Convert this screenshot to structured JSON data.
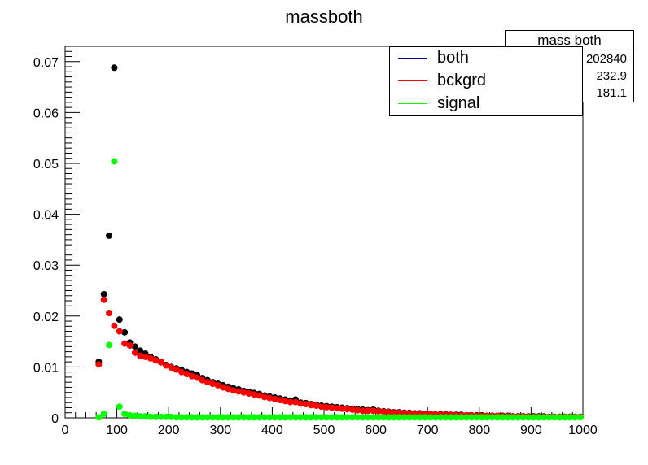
{
  "chart_data": {
    "type": "scatter",
    "title": "massboth",
    "xlabel": "",
    "ylabel": "",
    "xlim": [
      0,
      1000
    ],
    "ylim": [
      0,
      0.073
    ],
    "x_ticks": [
      "0",
      "100",
      "200",
      "300",
      "400",
      "500",
      "600",
      "700",
      "800",
      "900",
      "1000"
    ],
    "y_ticks": [
      "0",
      "0.01",
      "0.02",
      "0.03",
      "0.04",
      "0.05",
      "0.06",
      "0.07"
    ],
    "legend_position": "top-right",
    "series": [
      {
        "name": "both",
        "color": "#000000",
        "line_color": "#00008b",
        "points": [
          [
            65,
            0.011
          ],
          [
            75,
            0.0243
          ],
          [
            85,
            0.0358
          ],
          [
            95,
            0.0688
          ],
          [
            105,
            0.0193
          ],
          [
            115,
            0.0168
          ],
          [
            125,
            0.0148
          ],
          [
            135,
            0.014
          ],
          [
            145,
            0.0132
          ],
          [
            155,
            0.0126
          ],
          [
            165,
            0.012
          ],
          [
            175,
            0.0115
          ],
          [
            185,
            0.011
          ],
          [
            195,
            0.0104
          ],
          [
            205,
            0.01
          ],
          [
            215,
            0.0097
          ],
          [
            225,
            0.0094
          ],
          [
            235,
            0.009
          ],
          [
            245,
            0.0087
          ],
          [
            255,
            0.0084
          ],
          [
            265,
            0.0078
          ],
          [
            275,
            0.0074
          ],
          [
            285,
            0.007
          ],
          [
            295,
            0.0067
          ],
          [
            305,
            0.0064
          ],
          [
            315,
            0.0061
          ],
          [
            325,
            0.0058
          ],
          [
            335,
            0.0056
          ],
          [
            345,
            0.0053
          ],
          [
            355,
            0.0051
          ],
          [
            365,
            0.0049
          ],
          [
            375,
            0.0047
          ],
          [
            385,
            0.0044
          ],
          [
            395,
            0.0042
          ],
          [
            405,
            0.004
          ],
          [
            415,
            0.0038
          ],
          [
            425,
            0.0036
          ],
          [
            435,
            0.0034
          ],
          [
            445,
            0.0036
          ],
          [
            455,
            0.003
          ],
          [
            465,
            0.0029
          ],
          [
            475,
            0.0027
          ],
          [
            485,
            0.0026
          ],
          [
            495,
            0.0024
          ],
          [
            505,
            0.0023
          ],
          [
            515,
            0.0022
          ],
          [
            525,
            0.0021
          ],
          [
            535,
            0.002
          ],
          [
            545,
            0.0019
          ],
          [
            555,
            0.0018
          ],
          [
            565,
            0.0017
          ],
          [
            575,
            0.0016
          ],
          [
            585,
            0.0015
          ],
          [
            595,
            0.0016
          ],
          [
            605,
            0.0014
          ],
          [
            615,
            0.0013
          ],
          [
            625,
            0.0012
          ],
          [
            635,
            0.0011
          ],
          [
            645,
            0.0011
          ],
          [
            655,
            0.001
          ],
          [
            665,
            0.001
          ],
          [
            675,
            0.0009
          ],
          [
            685,
            0.0009
          ],
          [
            695,
            0.0008
          ],
          [
            705,
            0.0008
          ],
          [
            715,
            0.0007
          ],
          [
            725,
            0.0007
          ],
          [
            735,
            0.0007
          ],
          [
            745,
            0.0006
          ],
          [
            755,
            0.0006
          ],
          [
            765,
            0.0006
          ],
          [
            775,
            0.0005
          ],
          [
            785,
            0.0005
          ],
          [
            795,
            0.0005
          ],
          [
            805,
            0.0005
          ],
          [
            815,
            0.0004
          ],
          [
            825,
            0.0004
          ],
          [
            835,
            0.0004
          ],
          [
            845,
            0.0004
          ],
          [
            855,
            0.0004
          ],
          [
            865,
            0.0003
          ],
          [
            875,
            0.0003
          ],
          [
            885,
            0.0003
          ],
          [
            895,
            0.0003
          ],
          [
            905,
            0.0003
          ],
          [
            915,
            0.0003
          ],
          [
            925,
            0.0003
          ],
          [
            935,
            0.0002
          ],
          [
            945,
            0.0002
          ],
          [
            955,
            0.0002
          ],
          [
            965,
            0.0002
          ],
          [
            975,
            0.0002
          ],
          [
            985,
            0.0002
          ],
          [
            995,
            0.0002
          ]
        ]
      },
      {
        "name": "bckgrd",
        "color": "#ff0000",
        "line_color": "#ff0000",
        "points": [
          [
            65,
            0.0105
          ],
          [
            75,
            0.0232
          ],
          [
            85,
            0.0206
          ],
          [
            95,
            0.0181
          ],
          [
            105,
            0.017
          ],
          [
            115,
            0.0146
          ],
          [
            125,
            0.0142
          ],
          [
            135,
            0.0128
          ],
          [
            145,
            0.0122
          ],
          [
            155,
            0.012
          ],
          [
            165,
            0.0117
          ],
          [
            175,
            0.0113
          ],
          [
            185,
            0.0109
          ],
          [
            195,
            0.0103
          ],
          [
            205,
            0.0099
          ],
          [
            215,
            0.0095
          ],
          [
            225,
            0.009
          ],
          [
            235,
            0.0086
          ],
          [
            245,
            0.0082
          ],
          [
            255,
            0.0079
          ],
          [
            265,
            0.0074
          ],
          [
            275,
            0.007
          ],
          [
            285,
            0.0067
          ],
          [
            295,
            0.0064
          ],
          [
            305,
            0.006
          ],
          [
            315,
            0.0057
          ],
          [
            325,
            0.0054
          ],
          [
            335,
            0.0052
          ],
          [
            345,
            0.005
          ],
          [
            355,
            0.0048
          ],
          [
            365,
            0.0046
          ],
          [
            375,
            0.0044
          ],
          [
            385,
            0.0041
          ],
          [
            395,
            0.0039
          ],
          [
            405,
            0.0037
          ],
          [
            415,
            0.0035
          ],
          [
            425,
            0.0033
          ],
          [
            435,
            0.0031
          ],
          [
            445,
            0.0031
          ],
          [
            455,
            0.0028
          ],
          [
            465,
            0.0027
          ],
          [
            475,
            0.0025
          ],
          [
            485,
            0.0024
          ],
          [
            495,
            0.0022
          ],
          [
            505,
            0.0021
          ],
          [
            515,
            0.002
          ],
          [
            525,
            0.0019
          ],
          [
            535,
            0.0018
          ],
          [
            545,
            0.0017
          ],
          [
            555,
            0.0016
          ],
          [
            565,
            0.0015
          ],
          [
            575,
            0.0014
          ],
          [
            585,
            0.0014
          ],
          [
            595,
            0.0014
          ],
          [
            605,
            0.0013
          ],
          [
            615,
            0.0012
          ],
          [
            625,
            0.0011
          ],
          [
            635,
            0.001
          ],
          [
            645,
            0.001
          ],
          [
            655,
            0.0009
          ],
          [
            665,
            0.0009
          ],
          [
            675,
            0.0008
          ],
          [
            685,
            0.0008
          ],
          [
            695,
            0.0007
          ],
          [
            705,
            0.0007
          ],
          [
            715,
            0.0007
          ],
          [
            725,
            0.0006
          ],
          [
            735,
            0.0006
          ],
          [
            745,
            0.0006
          ],
          [
            755,
            0.0005
          ],
          [
            765,
            0.0005
          ],
          [
            775,
            0.0005
          ],
          [
            785,
            0.0005
          ],
          [
            795,
            0.0004
          ],
          [
            805,
            0.0004
          ],
          [
            815,
            0.0004
          ],
          [
            825,
            0.0004
          ],
          [
            835,
            0.0004
          ],
          [
            845,
            0.0003
          ],
          [
            855,
            0.0003
          ],
          [
            865,
            0.0003
          ],
          [
            875,
            0.0003
          ],
          [
            885,
            0.0003
          ],
          [
            895,
            0.0003
          ],
          [
            905,
            0.0002
          ],
          [
            915,
            0.0002
          ],
          [
            925,
            0.0002
          ],
          [
            935,
            0.0002
          ],
          [
            945,
            0.0002
          ],
          [
            955,
            0.0002
          ],
          [
            965,
            0.0002
          ],
          [
            975,
            0.0002
          ],
          [
            985,
            0.0002
          ],
          [
            995,
            0.0002
          ]
        ]
      },
      {
        "name": "signal",
        "color": "#00ff00",
        "line_color": "#00ff00",
        "points": [
          [
            65,
            0.0001
          ],
          [
            75,
            0.0008
          ],
          [
            85,
            0.0143
          ],
          [
            95,
            0.0504
          ],
          [
            105,
            0.0022
          ],
          [
            115,
            0.0008
          ],
          [
            125,
            0.0005
          ],
          [
            135,
            0.0004
          ],
          [
            145,
            0.0003
          ],
          [
            155,
            0.0003
          ],
          [
            165,
            0.0002
          ],
          [
            175,
            0.0002
          ],
          [
            185,
            0.0002
          ],
          [
            195,
            0.0002
          ],
          [
            205,
            0.0002
          ],
          [
            215,
            0.0001
          ],
          [
            225,
            0.0001
          ],
          [
            235,
            0.0001
          ],
          [
            245,
            0.0001
          ],
          [
            255,
            0.0001
          ],
          [
            265,
            0.0001
          ],
          [
            275,
            0.0001
          ],
          [
            285,
            0.0001
          ],
          [
            295,
            0.0001
          ],
          [
            305,
            0.0001
          ],
          [
            315,
            0.0001
          ],
          [
            325,
            0.0001
          ],
          [
            335,
            0.0001
          ],
          [
            345,
            0.0001
          ],
          [
            355,
            0.0001
          ],
          [
            365,
            0.0001
          ],
          [
            375,
            0.0001
          ],
          [
            385,
            0.0001
          ],
          [
            395,
            0.0001
          ],
          [
            405,
            0.0001
          ],
          [
            415,
            0.0001
          ],
          [
            425,
            0.0001
          ],
          [
            435,
            0.0001
          ],
          [
            445,
            0.0001
          ],
          [
            455,
            0.0001
          ],
          [
            465,
            0.0001
          ],
          [
            475,
            0.0001
          ],
          [
            485,
            0.0001
          ],
          [
            495,
            0.0001
          ],
          [
            505,
            0.0001
          ],
          [
            515,
            0.0001
          ],
          [
            525,
            0.0001
          ],
          [
            535,
            0.0001
          ],
          [
            545,
            0.0001
          ],
          [
            555,
            0.0001
          ],
          [
            565,
            0.0001
          ],
          [
            575,
            0.0001
          ],
          [
            585,
            0.0001
          ],
          [
            595,
            0.0001
          ],
          [
            605,
            0.0001
          ],
          [
            615,
            0.0001
          ],
          [
            625,
            0.0001
          ],
          [
            635,
            0.0001
          ],
          [
            645,
            0.0001
          ],
          [
            655,
            0.0001
          ],
          [
            665,
            0.0001
          ],
          [
            675,
            0.0001
          ],
          [
            685,
            0.0001
          ],
          [
            695,
            0.0001
          ],
          [
            705,
            0.0001
          ],
          [
            715,
            0.0001
          ],
          [
            725,
            0.0001
          ],
          [
            735,
            0.0001
          ],
          [
            745,
            0.0001
          ],
          [
            755,
            0.0001
          ],
          [
            765,
            0.0001
          ],
          [
            775,
            0.0001
          ],
          [
            785,
            0.0001
          ],
          [
            795,
            0.0001
          ],
          [
            805,
            0.0001
          ],
          [
            815,
            0.0001
          ],
          [
            825,
            0.0001
          ],
          [
            835,
            0.0001
          ],
          [
            845,
            0.0001
          ],
          [
            855,
            0.0001
          ],
          [
            865,
            0.0001
          ],
          [
            875,
            0.0001
          ],
          [
            885,
            0.0001
          ],
          [
            895,
            0.0001
          ],
          [
            905,
            0.0001
          ],
          [
            915,
            0.0001
          ],
          [
            925,
            0.0001
          ],
          [
            935,
            0.0001
          ],
          [
            945,
            0.0001
          ],
          [
            955,
            0.0001
          ],
          [
            965,
            0.0001
          ],
          [
            975,
            0.0001
          ],
          [
            985,
            0.0001
          ],
          [
            995,
            0.0001
          ]
        ]
      }
    ]
  },
  "stats_box": {
    "title": "mass both",
    "values": [
      "202840",
      "232.9",
      "181.1"
    ]
  }
}
